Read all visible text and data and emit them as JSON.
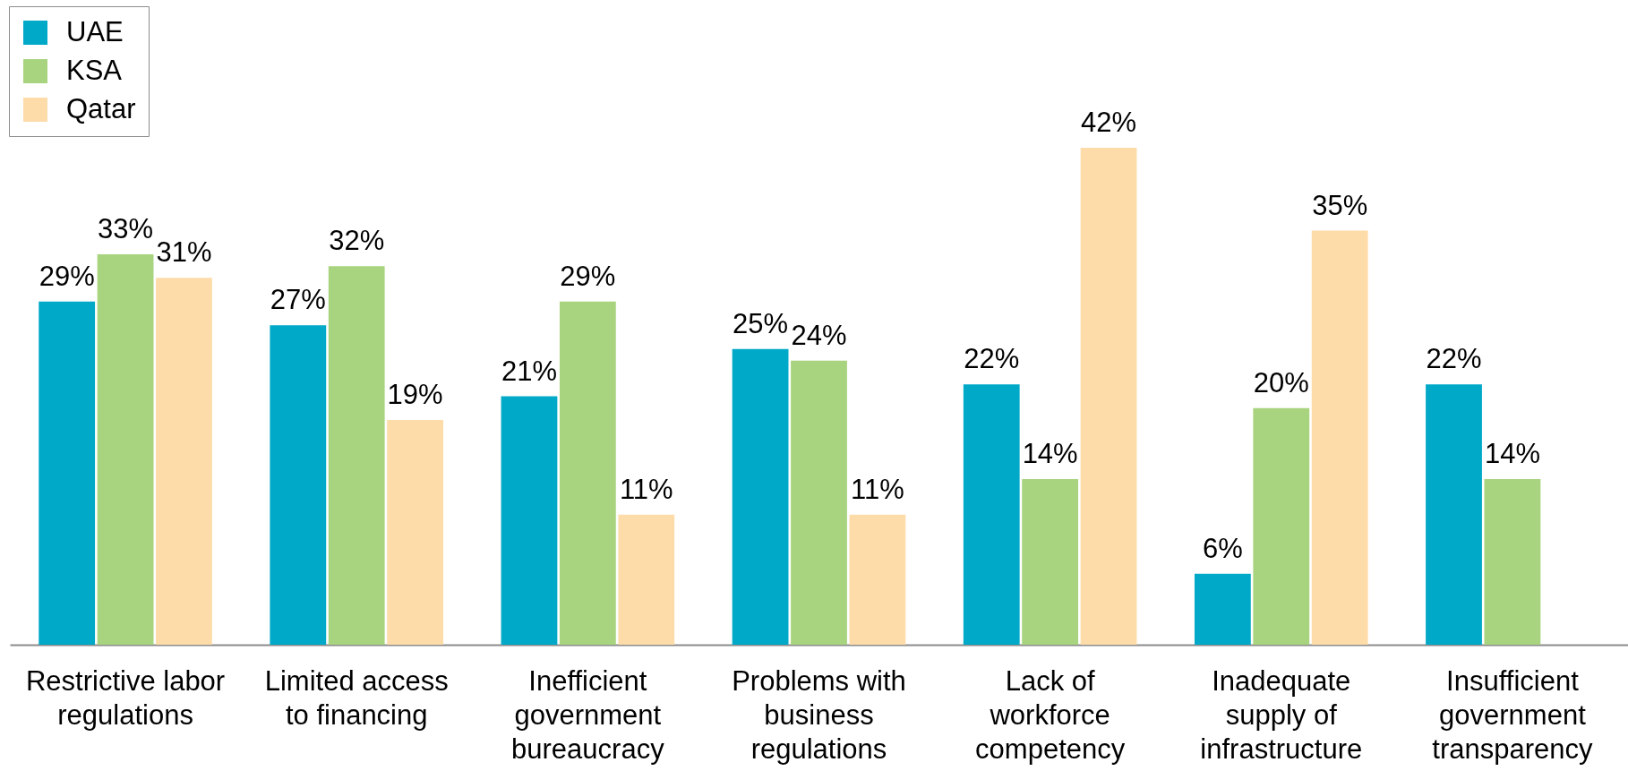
{
  "chart_data": {
    "type": "bar",
    "categories": [
      "Restrictive labor regulations",
      "Limited access to financing",
      "Inefficient government bureaucracy",
      "Problems with business regulations",
      "Lack of workforce competency",
      "Inadequate supply of infrastructure",
      "Insufficient government transparency"
    ],
    "series": [
      {
        "name": "UAE",
        "color": "#00a9c8",
        "values": [
          29,
          27,
          21,
          25,
          22,
          6,
          22
        ],
        "value_labels": [
          "29%",
          "27%",
          "21%",
          "25%",
          "22%",
          "6%",
          "22%"
        ]
      },
      {
        "name": "KSA",
        "color": "#a8d47f",
        "values": [
          33,
          32,
          29,
          24,
          14,
          20,
          14
        ],
        "value_labels": [
          "33%",
          "32%",
          "29%",
          "24%",
          "14%",
          "20%",
          "14%"
        ]
      },
      {
        "name": "Qatar",
        "color": "#fddcaa",
        "values": [
          31,
          19,
          11,
          11,
          42,
          35,
          null
        ],
        "value_labels": [
          "31%",
          "19%",
          "11%",
          "11%",
          "42%",
          "35%",
          null
        ]
      }
    ],
    "legend": "top left"
  }
}
